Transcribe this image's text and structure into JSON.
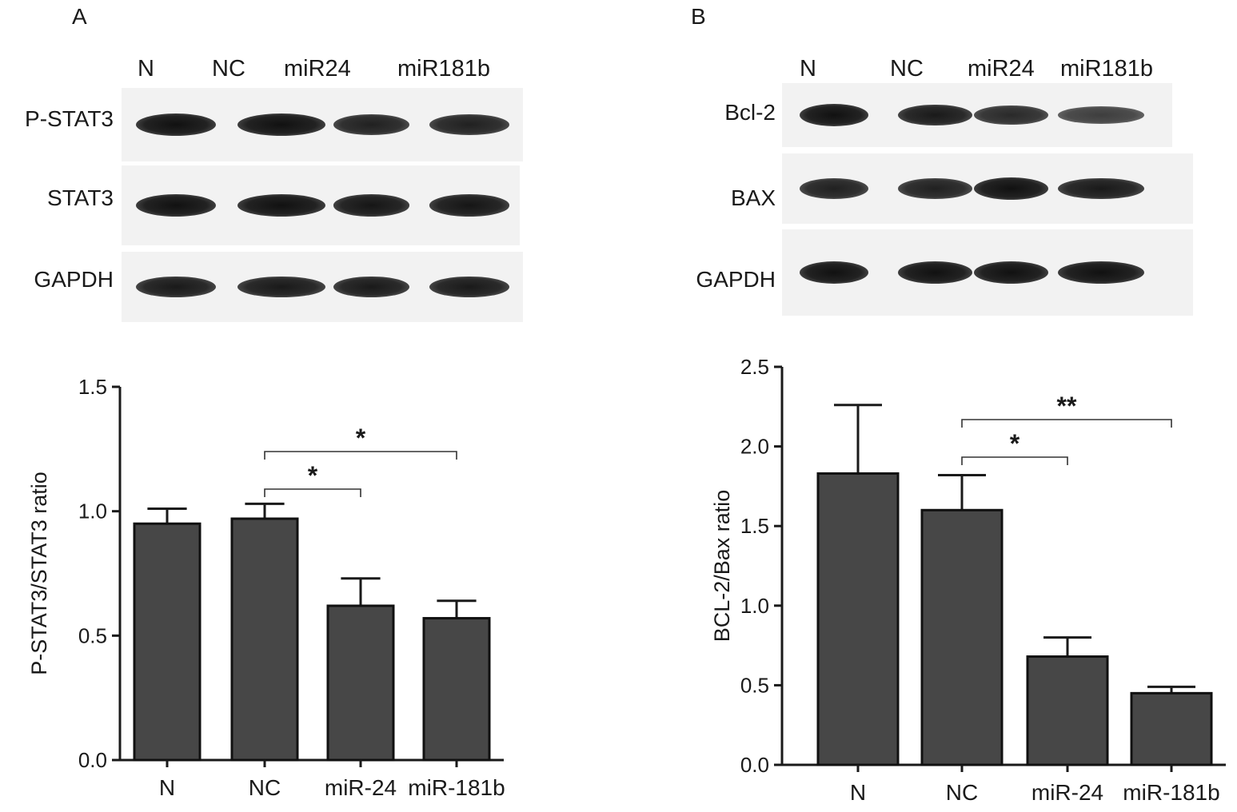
{
  "panels": [
    {
      "letter": "A",
      "lanes": [
        "N",
        "NC",
        "miR24",
        "miR181b"
      ],
      "blot_rows": [
        {
          "label": "P-STAT3",
          "intensity": [
            1.0,
            1.0,
            0.85,
            0.85
          ]
        },
        {
          "label": "STAT3",
          "intensity": [
            1.0,
            1.0,
            0.95,
            0.95
          ]
        },
        {
          "label": "GAPDH",
          "intensity": [
            0.9,
            0.9,
            0.9,
            0.9
          ]
        }
      ]
    },
    {
      "letter": "B",
      "lanes": [
        "N",
        "NC",
        "miR24",
        "miR181b"
      ],
      "blot_rows": [
        {
          "label": "Bcl-2",
          "intensity": [
            1.0,
            0.9,
            0.75,
            0.55
          ]
        },
        {
          "label": "BAX",
          "intensity": [
            0.85,
            0.85,
            1.0,
            0.9
          ]
        },
        {
          "label": "GAPDH",
          "intensity": [
            1.0,
            1.0,
            1.0,
            1.0
          ]
        }
      ]
    }
  ],
  "chart_data": [
    {
      "type": "bar",
      "categories": [
        "N",
        "NC",
        "miR-24",
        "miR-181b"
      ],
      "values": [
        0.95,
        0.97,
        0.62,
        0.57
      ],
      "errors": [
        0.06,
        0.06,
        0.11,
        0.07
      ],
      "ylabel": "P-STAT3/STAT3 ratio",
      "xlabel": "",
      "ylim": [
        0,
        1.5
      ],
      "yticks": [
        "0.0",
        "0.5",
        "1.0",
        "1.5"
      ],
      "bar_color": "#474747",
      "significance": [
        {
          "from": 1,
          "to": 2,
          "label": "*"
        },
        {
          "from": 1,
          "to": 3,
          "label": "*"
        }
      ]
    },
    {
      "type": "bar",
      "categories": [
        "N",
        "NC",
        "miR-24",
        "miR-181b"
      ],
      "values": [
        1.83,
        1.6,
        0.68,
        0.45
      ],
      "errors": [
        0.43,
        0.22,
        0.12,
        0.04
      ],
      "ylabel": "BCL-2/Bax ratio",
      "xlabel": "",
      "ylim": [
        0,
        2.5
      ],
      "yticks": [
        "0.0",
        "0.5",
        "1.0",
        "1.5",
        "2.0",
        "2.5"
      ],
      "bar_color": "#474747",
      "significance": [
        {
          "from": 1,
          "to": 2,
          "label": "*"
        },
        {
          "from": 1,
          "to": 3,
          "label": "**"
        }
      ]
    }
  ]
}
